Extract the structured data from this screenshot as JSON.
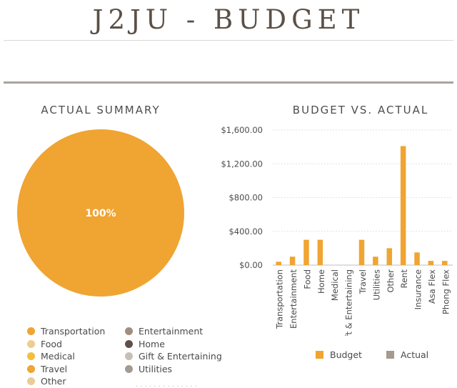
{
  "header": {
    "title": "J2JU - BUDGET"
  },
  "summary": {
    "title": "ACTUAL SUMMARY",
    "pie_label": "100%",
    "pie_color": "#F0A432",
    "legend_left": [
      {
        "label": "Transportation",
        "color": "#F0A432"
      },
      {
        "label": "Food",
        "color": "#EFCC8F"
      },
      {
        "label": "Medical",
        "color": "#F3BE3E"
      },
      {
        "label": "Travel",
        "color": "#F0A432"
      },
      {
        "label": "Other",
        "color": "#E9CC98"
      }
    ],
    "legend_right": [
      {
        "label": "Entertainment",
        "color": "#9F8E82"
      },
      {
        "label": "Home",
        "color": "#5E5048"
      },
      {
        "label": "Gift & Entertaining",
        "color": "#C7BEB6"
      },
      {
        "label": "Utilities",
        "color": "#A59A90"
      }
    ]
  },
  "comparison": {
    "title": "BUDGET VS. ACTUAL",
    "legend": [
      {
        "label": "Budget",
        "color": "#F0A432"
      },
      {
        "label": "Actual",
        "color": "#A59A90"
      }
    ]
  },
  "chart_data": {
    "type": "bar",
    "categories": [
      "Transportation",
      "Entertainment",
      "Food",
      "Home",
      "Medical",
      "Gift & Entertaining",
      "Travel",
      "Utilities",
      "Other",
      "Rent",
      "Insurance",
      "Asa Flex",
      "Phong Flex"
    ],
    "series": [
      {
        "name": "Budget",
        "values": [
          40,
          100,
          300,
          300,
          0,
          0,
          300,
          100,
          200,
          1410,
          150,
          50,
          50
        ]
      },
      {
        "name": "Actual",
        "values": [
          0,
          0,
          0,
          0,
          0,
          0,
          0,
          0,
          0,
          0,
          0,
          0,
          0
        ]
      }
    ],
    "yticks": [
      "$0.00",
      "$400.00",
      "$800.00",
      "$1,200.00",
      "$1,600.00"
    ],
    "ylim": [
      0,
      1600
    ],
    "grid": true,
    "legend": "bottom"
  }
}
